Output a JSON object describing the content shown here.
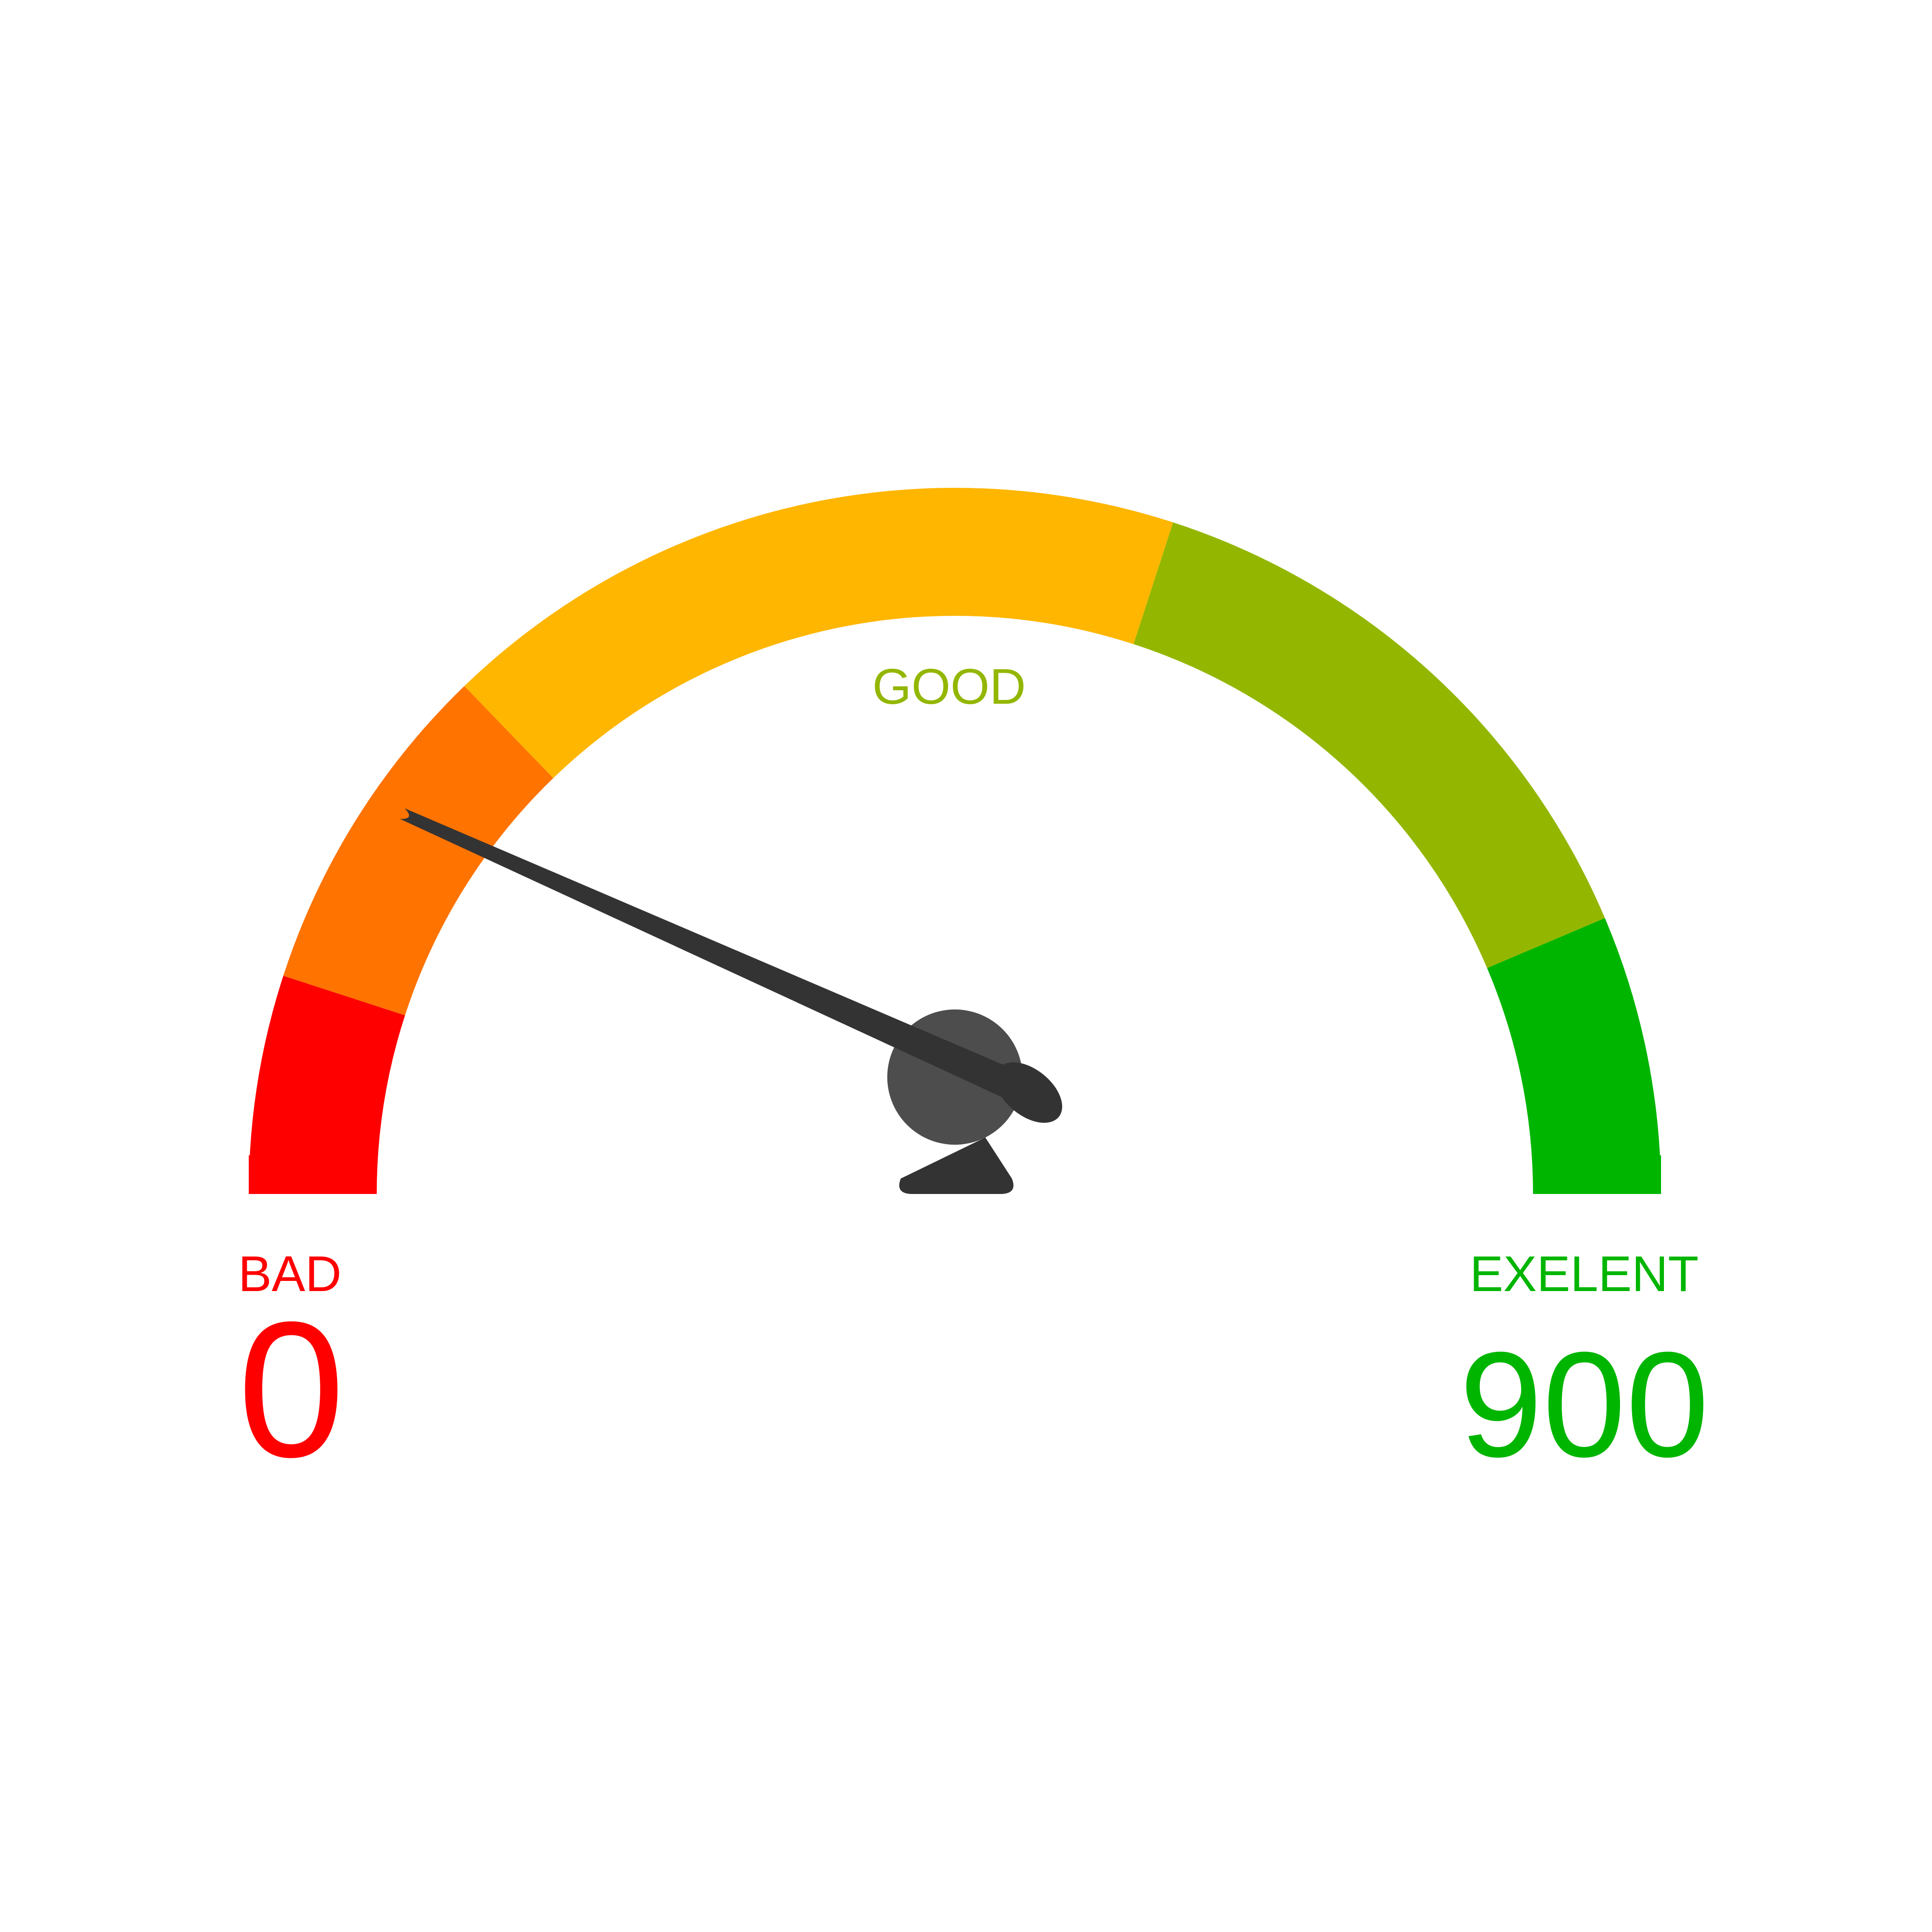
{
  "chart_data": {
    "type": "gauge",
    "min": 0,
    "max": 900,
    "value": 120,
    "bands": [
      {
        "from": 0,
        "to": 90,
        "color": "#ff0000"
      },
      {
        "from": 90,
        "to": 230,
        "color": "#ff7300"
      },
      {
        "from": 230,
        "to": 540,
        "color": "#ffb600"
      },
      {
        "from": 540,
        "to": 785,
        "color": "#93b700"
      },
      {
        "from": 785,
        "to": 900,
        "color": "#00b500"
      }
    ],
    "labels": {
      "low": {
        "text": "BAD",
        "value": "0",
        "color": "#ff0000"
      },
      "mid": {
        "text": "GOOD",
        "color": "#93b700"
      },
      "high": {
        "text": "EXELENT",
        "value": "900",
        "color": "#00b500"
      }
    },
    "needle_color": "#333333",
    "hub_color": "#4d4d4d"
  }
}
